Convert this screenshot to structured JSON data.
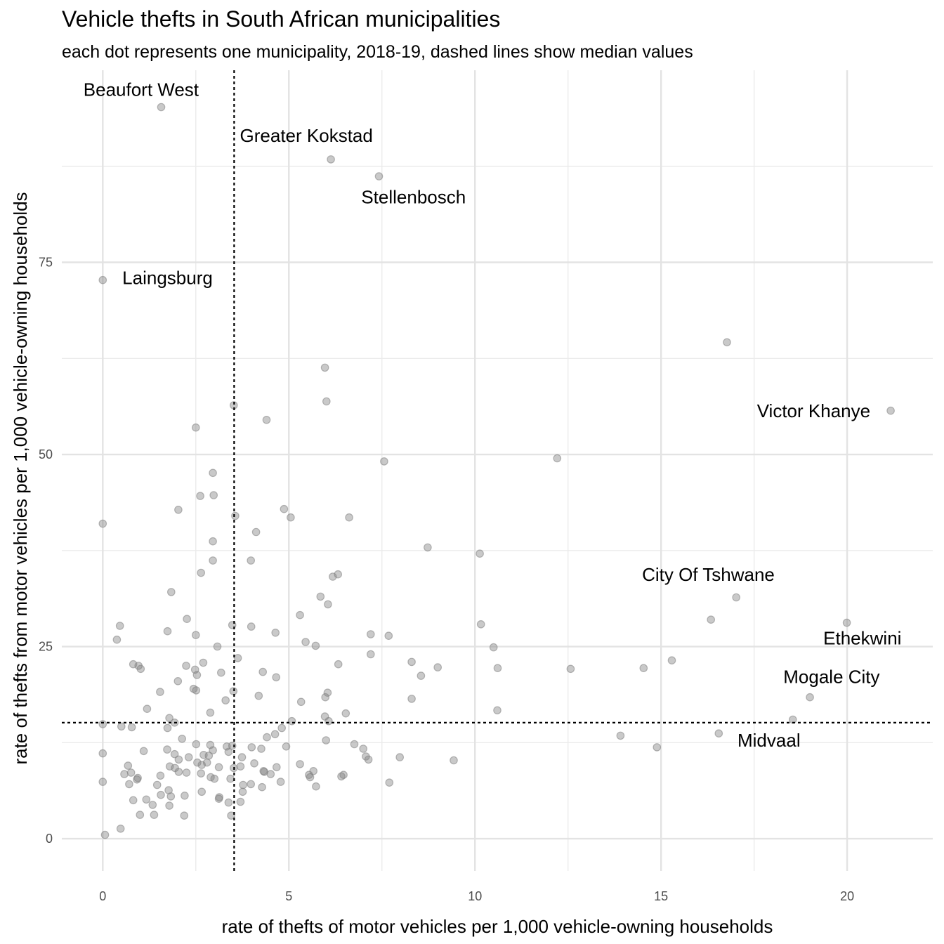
{
  "title": "Vehicle thefts in South African municipalities",
  "subtitle": "each dot represents one municipality, 2018-19, dashed lines show median values",
  "chart_data": {
    "type": "scatter",
    "xlabel": "rate of thefts of motor vehicles per 1,000 vehicle-owning households",
    "ylabel": "rate of thefts from motor vehicles per 1,000 vehicle-owning households",
    "xlim": [
      -1.1,
      22.3
    ],
    "ylim": [
      -4.2,
      100
    ],
    "x_ticks": [
      0,
      5,
      10,
      15,
      20
    ],
    "y_ticks": [
      0,
      25,
      50,
      75
    ],
    "grid": true,
    "median_x": 3.53,
    "median_y": 15.1,
    "point_color": "#7f7f7f",
    "median_line_color": "#000000",
    "points": [
      [
        1.57,
        95.2
      ],
      [
        6.13,
        88.4
      ],
      [
        7.42,
        86.2
      ],
      [
        0.0,
        72.7
      ],
      [
        16.77,
        64.6
      ],
      [
        21.17,
        55.7
      ],
      [
        5.97,
        61.3
      ],
      [
        6.01,
        56.9
      ],
      [
        3.52,
        56.4
      ],
      [
        4.4,
        54.5
      ],
      [
        2.5,
        53.5
      ],
      [
        7.56,
        49.1
      ],
      [
        12.21,
        49.5
      ],
      [
        2.96,
        47.6
      ],
      [
        2.62,
        44.6
      ],
      [
        2.98,
        44.7
      ],
      [
        2.03,
        42.8
      ],
      [
        4.87,
        42.9
      ],
      [
        5.05,
        41.8
      ],
      [
        3.56,
        42.0
      ],
      [
        6.62,
        41.8
      ],
      [
        0.0,
        41.0
      ],
      [
        4.12,
        39.9
      ],
      [
        2.96,
        38.7
      ],
      [
        8.73,
        37.9
      ],
      [
        10.13,
        37.1
      ],
      [
        2.96,
        36.2
      ],
      [
        3.98,
        36.2
      ],
      [
        2.64,
        34.6
      ],
      [
        6.32,
        34.4
      ],
      [
        6.18,
        34.1
      ],
      [
        1.84,
        32.1
      ],
      [
        5.85,
        31.5
      ],
      [
        17.02,
        31.4
      ],
      [
        6.05,
        30.5
      ],
      [
        5.3,
        29.1
      ],
      [
        2.26,
        28.6
      ],
      [
        16.34,
        28.5
      ],
      [
        19.99,
        28.1
      ],
      [
        0.46,
        27.7
      ],
      [
        3.48,
        27.8
      ],
      [
        3.99,
        27.6
      ],
      [
        10.16,
        27.9
      ],
      [
        1.74,
        27.0
      ],
      [
        2.5,
        26.5
      ],
      [
        4.64,
        26.8
      ],
      [
        7.2,
        26.6
      ],
      [
        7.68,
        26.4
      ],
      [
        0.38,
        25.9
      ],
      [
        5.45,
        25.6
      ],
      [
        5.72,
        25.1
      ],
      [
        3.08,
        25.0
      ],
      [
        10.5,
        24.9
      ],
      [
        7.2,
        24.0
      ],
      [
        3.63,
        23.5
      ],
      [
        15.29,
        23.2
      ],
      [
        8.3,
        23.0
      ],
      [
        2.7,
        22.9
      ],
      [
        6.33,
        22.7
      ],
      [
        0.82,
        22.7
      ],
      [
        0.96,
        22.5
      ],
      [
        2.24,
        22.5
      ],
      [
        9.0,
        22.3
      ],
      [
        1.02,
        22.1
      ],
      [
        2.48,
        22.0
      ],
      [
        10.61,
        22.2
      ],
      [
        12.57,
        22.1
      ],
      [
        14.53,
        22.2
      ],
      [
        3.18,
        21.6
      ],
      [
        4.3,
        21.7
      ],
      [
        2.53,
        21.3
      ],
      [
        8.55,
        21.2
      ],
      [
        4.66,
        21.0
      ],
      [
        2.02,
        20.5
      ],
      [
        2.44,
        19.5
      ],
      [
        2.51,
        19.3
      ],
      [
        1.54,
        19.1
      ],
      [
        3.51,
        19.2
      ],
      [
        6.04,
        19.0
      ],
      [
        4.19,
        18.6
      ],
      [
        5.98,
        18.4
      ],
      [
        19.0,
        18.4
      ],
      [
        8.3,
        18.2
      ],
      [
        3.3,
        18.0
      ],
      [
        5.33,
        17.8
      ],
      [
        1.19,
        16.9
      ],
      [
        10.6,
        16.7
      ],
      [
        2.89,
        16.4
      ],
      [
        6.53,
        16.3
      ],
      [
        5.97,
        15.9
      ],
      [
        1.79,
        15.7
      ],
      [
        18.54,
        15.5
      ],
      [
        6.07,
        15.3
      ],
      [
        1.93,
        15.1
      ],
      [
        5.08,
        15.3
      ],
      [
        0.0,
        14.9
      ],
      [
        0.5,
        14.6
      ],
      [
        0.78,
        14.5
      ],
      [
        1.74,
        14.4
      ],
      [
        4.81,
        14.4
      ],
      [
        16.55,
        13.7
      ],
      [
        4.63,
        13.6
      ],
      [
        13.91,
        13.4
      ],
      [
        4.41,
        13.2
      ],
      [
        2.13,
        13.0
      ],
      [
        6.0,
        12.8
      ],
      [
        2.51,
        12.3
      ],
      [
        2.89,
        12.2
      ],
      [
        6.76,
        12.3
      ],
      [
        3.33,
        12.0
      ],
      [
        4.93,
        12.0
      ],
      [
        3.48,
        12.1
      ],
      [
        4.0,
        11.9
      ],
      [
        14.89,
        11.9
      ],
      [
        7.0,
        11.7
      ],
      [
        4.26,
        11.7
      ],
      [
        1.73,
        11.6
      ],
      [
        2.96,
        11.5
      ],
      [
        1.1,
        11.4
      ],
      [
        0.0,
        11.1
      ],
      [
        3.38,
        11.3
      ],
      [
        1.93,
        11.0
      ],
      [
        2.71,
        10.9
      ],
      [
        2.31,
        10.6
      ],
      [
        2.85,
        10.8
      ],
      [
        3.74,
        10.6
      ],
      [
        7.07,
        10.7
      ],
      [
        2.04,
        10.3
      ],
      [
        7.98,
        10.6
      ],
      [
        7.14,
        10.3
      ],
      [
        9.43,
        10.2
      ],
      [
        2.8,
        9.9
      ],
      [
        2.54,
        9.9
      ],
      [
        2.66,
        9.6
      ],
      [
        4.07,
        9.8
      ],
      [
        5.3,
        9.7
      ],
      [
        0.68,
        9.5
      ],
      [
        1.8,
        9.4
      ],
      [
        3.12,
        9.3
      ],
      [
        3.7,
        9.4
      ],
      [
        4.67,
        9.3
      ],
      [
        3.52,
        9.2
      ],
      [
        1.94,
        9.2
      ],
      [
        2.04,
        8.7
      ],
      [
        2.25,
        8.6
      ],
      [
        4.34,
        8.7
      ],
      [
        4.32,
        8.8
      ],
      [
        4.51,
        8.4
      ],
      [
        5.66,
        8.8
      ],
      [
        5.54,
        8.3
      ],
      [
        0.58,
        8.4
      ],
      [
        0.76,
        8.6
      ],
      [
        1.55,
        8.2
      ],
      [
        2.64,
        8.5
      ],
      [
        6.47,
        8.3
      ],
      [
        6.41,
        8.1
      ],
      [
        0.94,
        7.9
      ],
      [
        2.9,
        8.0
      ],
      [
        3.0,
        7.8
      ],
      [
        5.57,
        8.0
      ],
      [
        0.92,
        7.7
      ],
      [
        3.43,
        7.8
      ],
      [
        0.0,
        7.4
      ],
      [
        4.78,
        7.4
      ],
      [
        7.7,
        7.3
      ],
      [
        0.71,
        7.1
      ],
      [
        1.46,
        7.0
      ],
      [
        3.98,
        7.1
      ],
      [
        3.77,
        7.0
      ],
      [
        4.28,
        6.7
      ],
      [
        5.73,
        6.8
      ],
      [
        1.77,
        6.3
      ],
      [
        2.66,
        6.1
      ],
      [
        3.76,
        6.1
      ],
      [
        1.56,
        5.7
      ],
      [
        2.2,
        5.6
      ],
      [
        1.83,
        5.5
      ],
      [
        3.13,
        5.4
      ],
      [
        3.12,
        5.2
      ],
      [
        3.38,
        4.7
      ],
      [
        0.82,
        5.0
      ],
      [
        1.17,
        5.1
      ],
      [
        1.34,
        4.4
      ],
      [
        1.79,
        4.3
      ],
      [
        3.7,
        4.8
      ],
      [
        1.0,
        3.1
      ],
      [
        1.38,
        3.1
      ],
      [
        2.19,
        3.0
      ],
      [
        3.45,
        3.0
      ],
      [
        0.48,
        1.3
      ],
      [
        0.06,
        0.5
      ]
    ],
    "annotations": [
      {
        "label": "Beaufort West",
        "x": 1.03,
        "y": 97.3,
        "anchor": "middle"
      },
      {
        "label": "Greater Kokstad",
        "x": 5.47,
        "y": 91.3,
        "anchor": "middle"
      },
      {
        "label": "Stellenbosch",
        "x": 8.35,
        "y": 83.3,
        "anchor": "middle"
      },
      {
        "label": "Laingsburg",
        "x": 1.74,
        "y": 72.8,
        "anchor": "middle"
      },
      {
        "label": "Victor Khanye",
        "x": 19.1,
        "y": 55.5,
        "anchor": "middle"
      },
      {
        "label": "City Of Tshwane",
        "x": 16.27,
        "y": 34.2,
        "anchor": "middle"
      },
      {
        "label": "Ethekwini",
        "x": 20.41,
        "y": 25.9,
        "anchor": "middle"
      },
      {
        "label": "Mogale City",
        "x": 19.58,
        "y": 20.9,
        "anchor": "middle"
      },
      {
        "label": "Midvaal",
        "x": 17.9,
        "y": 12.6,
        "anchor": "middle"
      }
    ]
  }
}
